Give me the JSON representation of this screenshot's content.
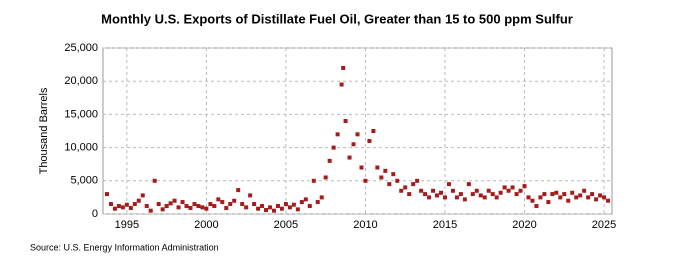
{
  "chart_data": {
    "type": "scatter",
    "title": "Monthly U.S. Exports of Distillate Fuel Oil, Greater than 15 to 500 ppm Sulfur",
    "y_label": "Thousand Barrels",
    "source": "Source: U.S. Energy Information Administration",
    "color": "#a51c1c",
    "grid": true,
    "xlim": [
      1993.5,
      2025.5
    ],
    "xticks": [
      1995,
      2000,
      2005,
      2010,
      2015,
      2020,
      2025
    ],
    "ylim": [
      0,
      25000
    ],
    "yticks": [
      0,
      {
        "value": 5000,
        "label": "5,000"
      },
      {
        "value": 10000,
        "label": "10,000"
      },
      {
        "value": 15000,
        "label": "15,000"
      },
      {
        "value": 20000,
        "label": "20,000"
      },
      {
        "value": 25000,
        "label": "25,000"
      }
    ],
    "x": [
      1993.75,
      1994.0,
      1994.25,
      1994.5,
      1994.75,
      1995.0,
      1995.25,
      1995.5,
      1995.75,
      1996.0,
      1996.25,
      1996.5,
      1996.75,
      1997.0,
      1997.25,
      1997.5,
      1997.75,
      1998.0,
      1998.25,
      1998.5,
      1998.75,
      1999.0,
      1999.25,
      1999.5,
      1999.75,
      2000.0,
      2000.25,
      2000.5,
      2000.75,
      2001.0,
      2001.25,
      2001.5,
      2001.75,
      2002.0,
      2002.25,
      2002.5,
      2002.75,
      2003.0,
      2003.25,
      2003.5,
      2003.75,
      2004.0,
      2004.25,
      2004.5,
      2004.75,
      2005.0,
      2005.25,
      2005.5,
      2005.75,
      2006.0,
      2006.25,
      2006.5,
      2006.75,
      2007.0,
      2007.25,
      2007.5,
      2007.75,
      2008.0,
      2008.25,
      2008.5,
      2008.6,
      2008.75,
      2009.0,
      2009.25,
      2009.5,
      2009.75,
      2010.0,
      2010.25,
      2010.5,
      2010.75,
      2011.0,
      2011.25,
      2011.5,
      2011.75,
      2012.0,
      2012.25,
      2012.5,
      2012.75,
      2013.0,
      2013.25,
      2013.5,
      2013.75,
      2014.0,
      2014.25,
      2014.5,
      2014.75,
      2015.0,
      2015.25,
      2015.5,
      2015.75,
      2016.0,
      2016.25,
      2016.5,
      2016.75,
      2017.0,
      2017.25,
      2017.5,
      2017.75,
      2018.0,
      2018.25,
      2018.5,
      2018.75,
      2019.0,
      2019.25,
      2019.5,
      2019.75,
      2020.0,
      2020.25,
      2020.5,
      2020.75,
      2021.0,
      2021.25,
      2021.5,
      2021.75,
      2022.0,
      2022.25,
      2022.5,
      2022.75,
      2023.0,
      2023.25,
      2023.5,
      2023.75,
      2024.0,
      2024.25,
      2024.5,
      2024.75,
      2025.0,
      2025.25
    ],
    "values": [
      3000,
      1500,
      800,
      1200,
      1000,
      1400,
      900,
      1500,
      2000,
      2800,
      1200,
      500,
      5000,
      1500,
      700,
      1200,
      1600,
      2000,
      1000,
      1800,
      1200,
      900,
      1500,
      1200,
      1000,
      800,
      1500,
      1200,
      2200,
      1800,
      900,
      1500,
      2000,
      3600,
      1500,
      1000,
      2800,
      1500,
      800,
      1200,
      600,
      1000,
      500,
      1200,
      800,
      1500,
      1000,
      1400,
      700,
      1800,
      2200,
      1200,
      5000,
      1800,
      2500,
      5500,
      8000,
      10000,
      12000,
      19500,
      22000,
      14000,
      8500,
      10500,
      12000,
      7000,
      5000,
      11000,
      12500,
      7000,
      5500,
      6500,
      4500,
      6000,
      5000,
      3500,
      4000,
      3000,
      4500,
      5000,
      3500,
      3000,
      2500,
      3500,
      2800,
      3200,
      2500,
      4500,
      3500,
      2500,
      3000,
      2200,
      4500,
      3000,
      3500,
      2800,
      2500,
      3500,
      3000,
      2500,
      3200,
      4000,
      3500,
      4000,
      3000,
      3500,
      4200,
      2500,
      2000,
      1200,
      2500,
      3000,
      1800,
      3000,
      3200,
      2500,
      3000,
      2000,
      3200,
      2500,
      2800,
      3500,
      2500,
      3000,
      2200,
      2800,
      2500,
      2000
    ]
  }
}
